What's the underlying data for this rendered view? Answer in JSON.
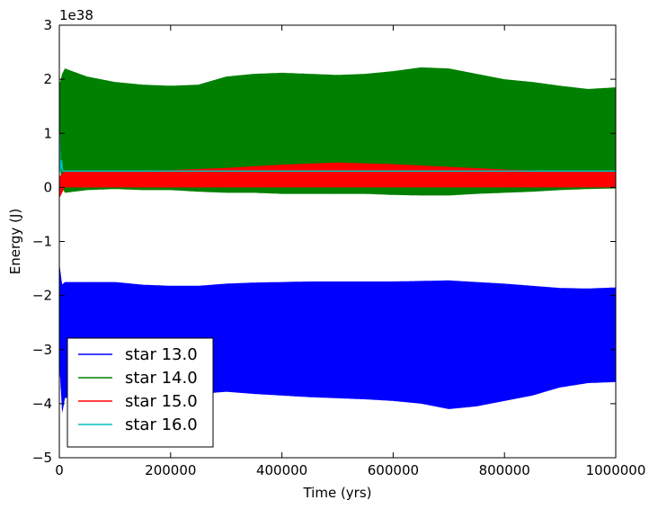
{
  "chart_data": {
    "type": "line",
    "title": "",
    "xlabel": "Time (yrs)",
    "ylabel": "Energy (J)",
    "y_offset_label": "1e38",
    "xlim": [
      0,
      1000000
    ],
    "ylim": [
      -5,
      3
    ],
    "xticks": [
      0,
      200000,
      400000,
      600000,
      800000,
      1000000
    ],
    "xtick_labels": [
      "0",
      "200000",
      "400000",
      "600000",
      "800000",
      "1000000"
    ],
    "yticks": [
      -5,
      -4,
      -3,
      -2,
      -1,
      0,
      1,
      2,
      3
    ],
    "ytick_labels": [
      "−5",
      "−4",
      "−3",
      "−2",
      "−1",
      "0",
      "1",
      "2",
      "3"
    ],
    "grid": false,
    "legend_position": "lower-left",
    "series": [
      {
        "name": "star 13.0",
        "color": "#0000ff",
        "x": [
          0,
          5000,
          10000,
          50000,
          100000,
          150000,
          200000,
          250000,
          300000,
          350000,
          400000,
          450000,
          500000,
          550000,
          600000,
          650000,
          700000,
          750000,
          800000,
          850000,
          900000,
          950000,
          1000000
        ],
        "upper": [
          -1.4,
          -1.8,
          -1.75,
          -1.75,
          -1.75,
          -1.8,
          -1.82,
          -1.82,
          -1.78,
          -1.76,
          -1.75,
          -1.74,
          -1.74,
          -1.74,
          -1.74,
          -1.73,
          -1.72,
          -1.75,
          -1.78,
          -1.82,
          -1.86,
          -1.87,
          -1.85
        ],
        "lower": [
          -3.2,
          -4.2,
          -3.9,
          -3.75,
          -3.75,
          -3.8,
          -3.82,
          -3.82,
          -3.78,
          -3.82,
          -3.85,
          -3.88,
          -3.9,
          -3.92,
          -3.95,
          -4.0,
          -4.1,
          -4.05,
          -3.95,
          -3.85,
          -3.7,
          -3.62,
          -3.6
        ]
      },
      {
        "name": "star 14.0",
        "color": "#008000",
        "x": [
          0,
          5000,
          10000,
          50000,
          100000,
          150000,
          200000,
          250000,
          300000,
          350000,
          400000,
          450000,
          500000,
          550000,
          600000,
          650000,
          700000,
          750000,
          800000,
          850000,
          900000,
          950000,
          1000000
        ],
        "upper": [
          1.9,
          2.1,
          2.2,
          2.05,
          1.95,
          1.9,
          1.88,
          1.9,
          2.05,
          2.1,
          2.12,
          2.1,
          2.08,
          2.1,
          2.15,
          2.22,
          2.2,
          2.1,
          2.0,
          1.95,
          1.88,
          1.82,
          1.85
        ],
        "lower": [
          0.5,
          0.0,
          -0.1,
          -0.05,
          -0.03,
          -0.05,
          -0.05,
          -0.08,
          -0.1,
          -0.1,
          -0.12,
          -0.12,
          -0.12,
          -0.12,
          -0.14,
          -0.15,
          -0.15,
          -0.12,
          -0.1,
          -0.08,
          -0.05,
          -0.03,
          -0.02
        ]
      },
      {
        "name": "star 15.0",
        "color": "#ff0000",
        "x": [
          0,
          5000,
          10000,
          50000,
          100000,
          200000,
          300000,
          400000,
          500000,
          600000,
          700000,
          800000,
          900000,
          1000000
        ],
        "upper": [
          0.2,
          0.25,
          0.3,
          0.3,
          0.3,
          0.32,
          0.36,
          0.42,
          0.46,
          0.43,
          0.38,
          0.33,
          0.3,
          0.3
        ],
        "lower": [
          -0.2,
          -0.1,
          0.0,
          0.0,
          0.0,
          0.0,
          0.0,
          0.0,
          0.0,
          0.0,
          0.0,
          0.0,
          0.0,
          0.0
        ]
      },
      {
        "name": "star 16.0",
        "color": "#00bfbf",
        "x": [
          0,
          2000,
          4000,
          6000,
          10000,
          1000000
        ],
        "values": [
          1.0,
          0.3,
          0.5,
          0.3,
          0.3,
          0.3
        ]
      }
    ]
  }
}
